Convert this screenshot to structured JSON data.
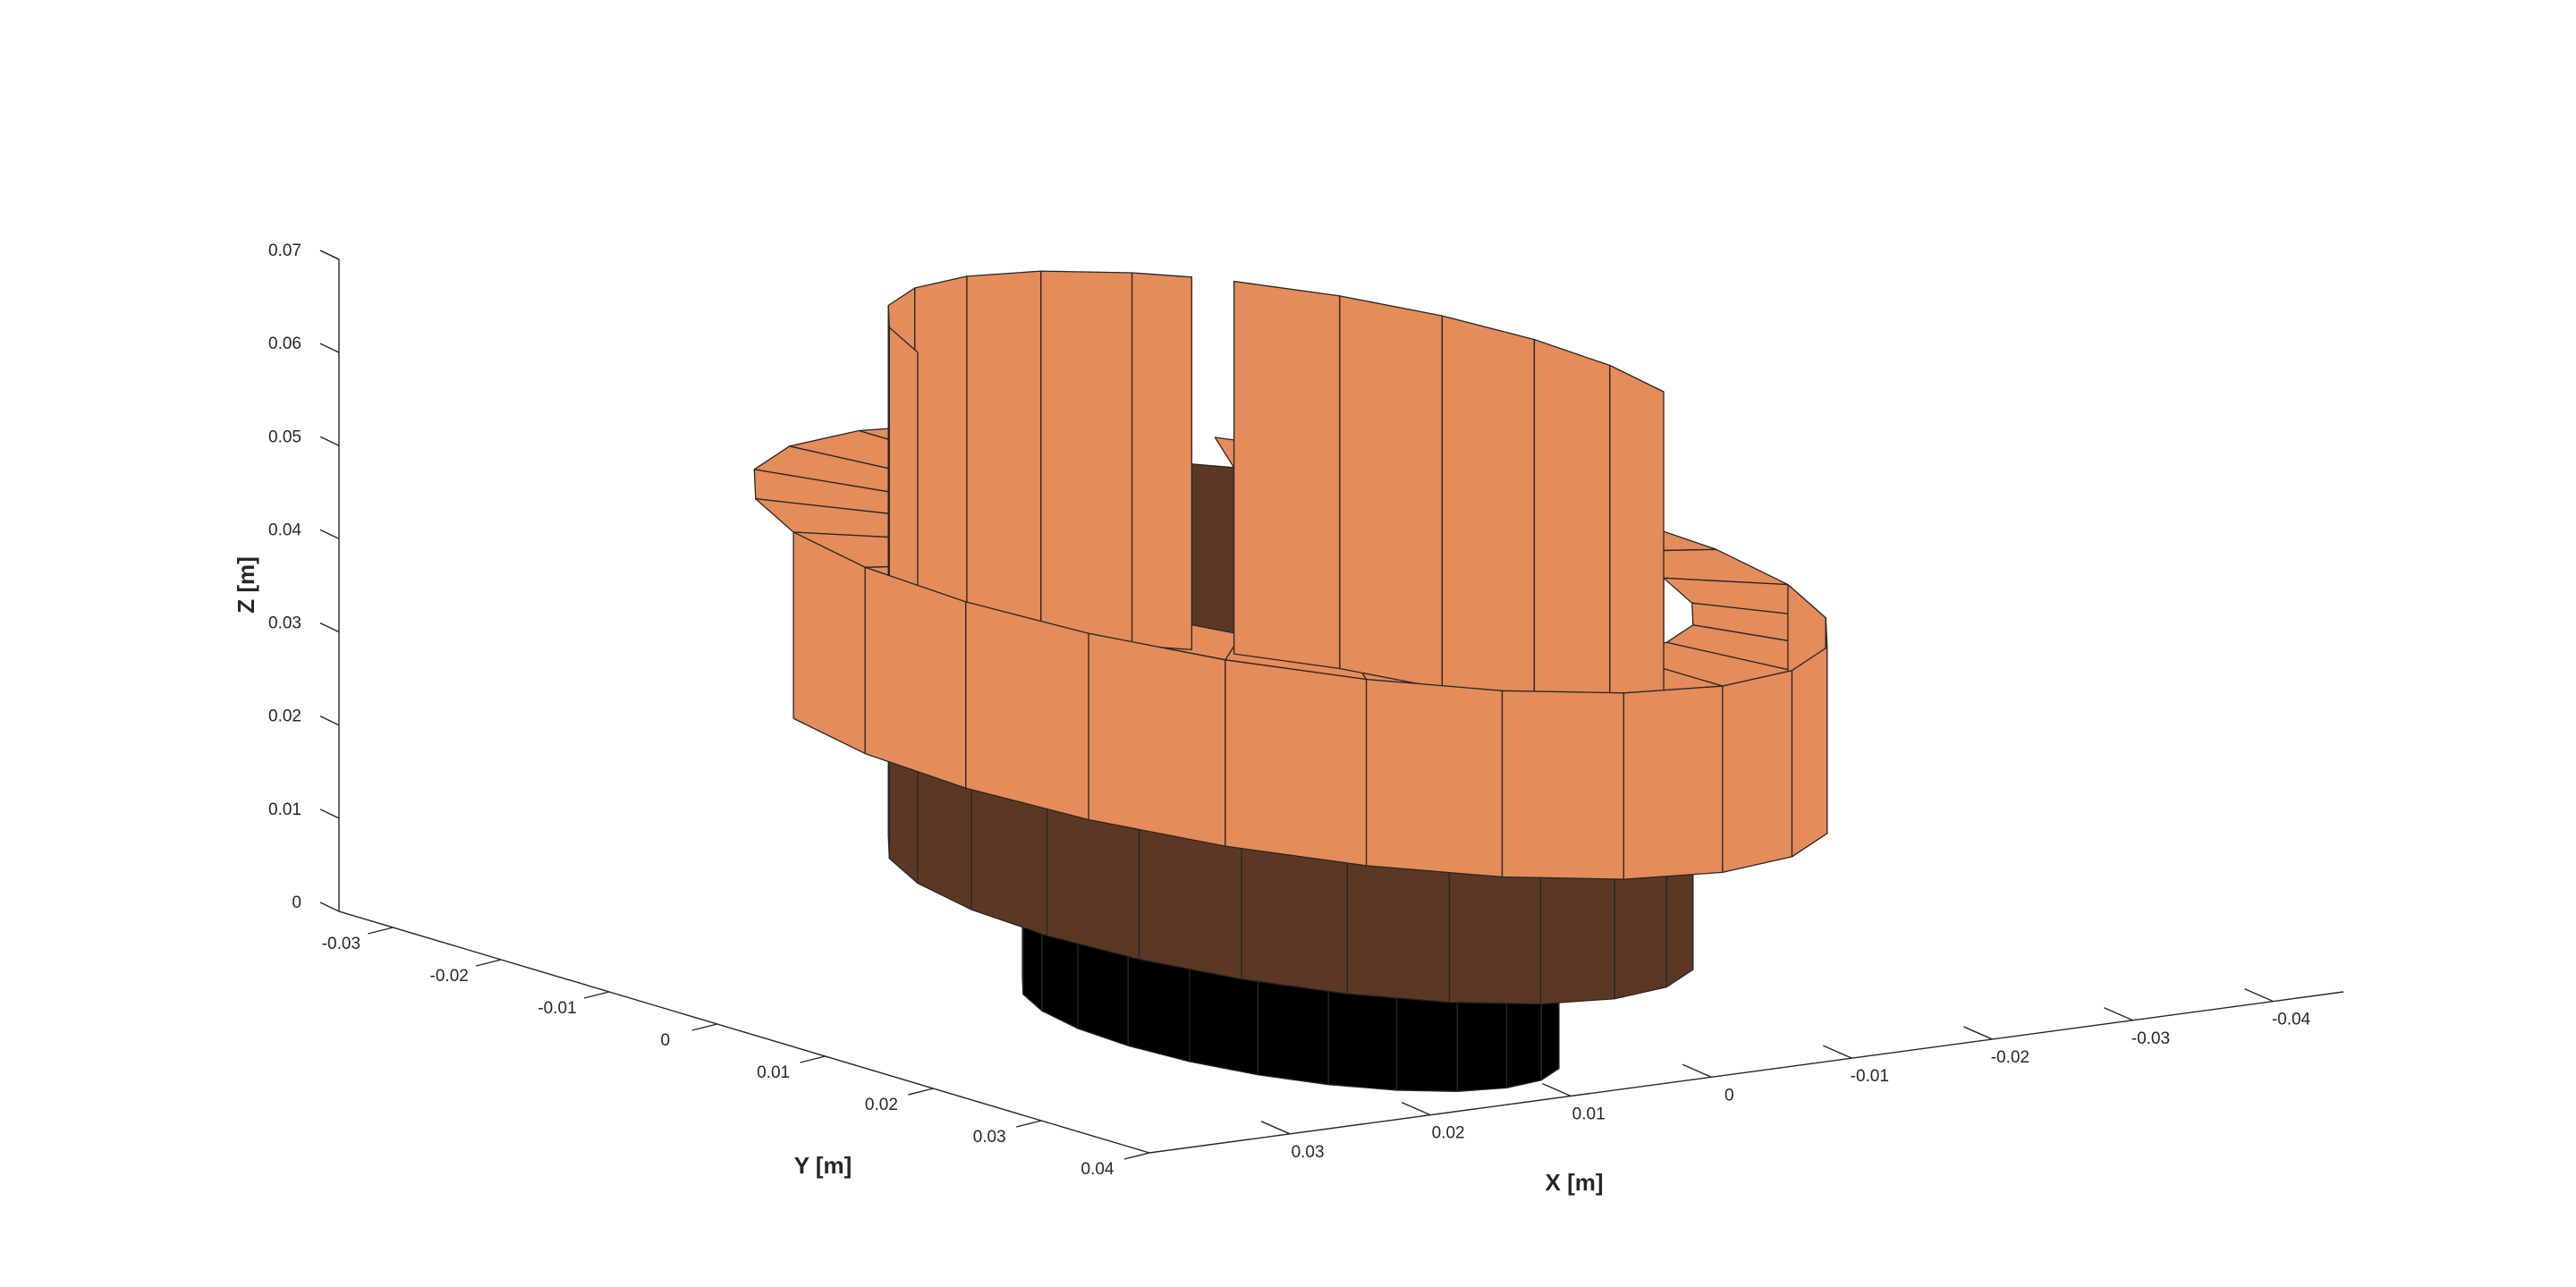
{
  "chart_data": {
    "type": "surface3d",
    "axes": {
      "x": {
        "label": "X [m]",
        "ticks": [
          0.03,
          0.02,
          0.01,
          0,
          -0.01,
          -0.02,
          -0.03,
          -0.04
        ],
        "tick_labels": [
          "0.03",
          "0.02",
          "0.01",
          "0",
          "-0.01",
          "-0.02",
          "-0.03",
          "-0.04"
        ],
        "range": [
          -0.045,
          0.04
        ]
      },
      "y": {
        "label": "Y [m]",
        "ticks": [
          -0.03,
          -0.02,
          -0.01,
          0,
          0.01,
          0.02,
          0.03,
          0.04
        ],
        "tick_labels": [
          "-0.03",
          "-0.02",
          "-0.01",
          "0",
          "0.01",
          "0.02",
          "0.03",
          "0.04"
        ],
        "range": [
          -0.035,
          0.04
        ]
      },
      "z": {
        "label": "Z [m]",
        "ticks": [
          0,
          0.01,
          0.02,
          0.03,
          0.04,
          0.05,
          0.06,
          0.07
        ],
        "tick_labels": [
          "0",
          "0.01",
          "0.02",
          "0.03",
          "0.04",
          "0.05",
          "0.06",
          "0.07"
        ],
        "range": [
          0,
          0.07
        ]
      }
    },
    "grid": false,
    "series": [
      {
        "part": "base cylinder",
        "color": "#000000",
        "radius": 0.02,
        "z_range": [
          0.0,
          0.013
        ]
      },
      {
        "part": "inner cylinder",
        "color": "#5c3824",
        "radius": 0.03,
        "z_range": [
          0.013,
          0.05
        ]
      },
      {
        "part": "outer ring with slot",
        "color": "#e48c5a",
        "inner_radius": 0.03,
        "outer_radius": 0.04,
        "z_range": [
          0.03,
          0.05
        ],
        "slot_width": 0.004
      }
    ]
  }
}
